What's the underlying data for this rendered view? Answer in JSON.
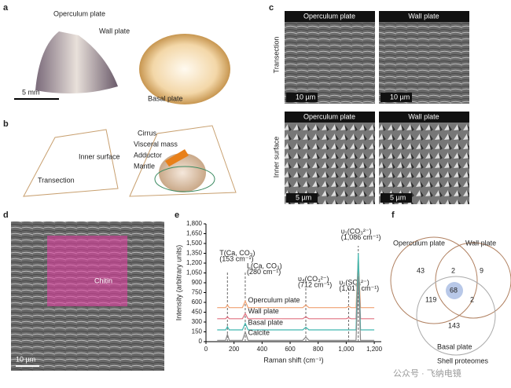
{
  "panels": {
    "a": {
      "letter": "a",
      "operculum": "Operculum plate",
      "wall": "Wall plate",
      "scale": "5 mm",
      "basal": "Basal plate"
    },
    "b": {
      "letter": "b",
      "inner": "Inner surface",
      "transection": "Transection",
      "cirrus": "Cirrus",
      "visceral": "Visceral mass",
      "adductor": "Adductor",
      "mantle": "Mantle"
    },
    "c": {
      "letter": "c",
      "headers": [
        "Operculum plate",
        "Wall plate",
        "Operculum plate",
        "Wall plate"
      ],
      "scales": [
        "10 µm",
        "10 µm",
        "5 µm",
        "5 µm"
      ],
      "rows": [
        "Transection",
        "Inner surface"
      ]
    },
    "d": {
      "letter": "d",
      "chitin": "Chitin",
      "scale": "10 µm"
    },
    "e": {
      "letter": "e"
    },
    "f": {
      "letter": "f",
      "sets": [
        "Operculum plate",
        "Wall plate",
        "Basal plate"
      ],
      "counts": [
        "43",
        "2",
        "9",
        "68",
        "119",
        "2",
        "143"
      ],
      "caption": "Shell proteomes"
    },
    "watermark": "公众号 · 飞纳电镜"
  },
  "chart_data": {
    "type": "line",
    "x_label": "Raman shift (cm⁻¹)",
    "y_label": "Intensity (arbitrary units)",
    "x": [
      80,
      140,
      153,
      166,
      260,
      280,
      300,
      690,
      712,
      734,
      1000,
      1017,
      1034,
      1070,
      1086,
      1102,
      1200
    ],
    "series": [
      {
        "name": "Operculum plate",
        "color": "#f0a070",
        "values": [
          520,
          520,
          560,
          520,
          520,
          620,
          520,
          520,
          560,
          520,
          520,
          540,
          520,
          520,
          1300,
          520,
          520
        ]
      },
      {
        "name": "Wall plate",
        "color": "#e07080",
        "values": [
          350,
          350,
          380,
          350,
          350,
          430,
          350,
          350,
          380,
          350,
          350,
          365,
          350,
          350,
          1200,
          350,
          350
        ]
      },
      {
        "name": "Basal plate",
        "color": "#40b8b0",
        "values": [
          180,
          180,
          230,
          180,
          180,
          280,
          180,
          180,
          220,
          180,
          180,
          180,
          180,
          180,
          1350,
          180,
          180
        ]
      },
      {
        "name": "Calcite",
        "color": "#888888",
        "values": [
          20,
          20,
          110,
          20,
          20,
          150,
          20,
          20,
          70,
          20,
          20,
          20,
          20,
          20,
          1000,
          20,
          20
        ]
      }
    ],
    "annotations": [
      {
        "x": 153,
        "text": "T(Ca, CO₃)",
        "sub": "(153 cm⁻¹)"
      },
      {
        "x": 280,
        "text": "L(Ca, CO₃)",
        "sub": "(280 cm⁻¹)"
      },
      {
        "x": 712,
        "text": "υ₄(CO₃²⁻)",
        "sub": "(712 cm⁻¹)"
      },
      {
        "x": 1017,
        "text": "υ₁(SO₄²⁻)",
        "sub": "(1,017 cm⁻¹)"
      },
      {
        "x": 1086,
        "text": "υ₁(CO₃²⁻)",
        "sub": "(1,086 cm⁻¹)"
      }
    ],
    "xlim": [
      0,
      1250
    ],
    "xticks": [
      0,
      200,
      400,
      600,
      800,
      {
        "value": 1000,
        "label": "1,000"
      },
      {
        "value": 1200,
        "label": "1,200"
      }
    ],
    "ylim": [
      0,
      1800
    ],
    "yticks": [
      0,
      150,
      300,
      450,
      600,
      750,
      900,
      {
        "value": 1050,
        "label": "1,050"
      },
      {
        "value": 1200,
        "label": "1,200"
      },
      {
        "value": 1350,
        "label": "1,350"
      },
      {
        "value": 1500,
        "label": "1,500"
      },
      {
        "value": 1650,
        "label": "1,650"
      },
      {
        "value": 1800,
        "label": "1,800"
      }
    ]
  }
}
